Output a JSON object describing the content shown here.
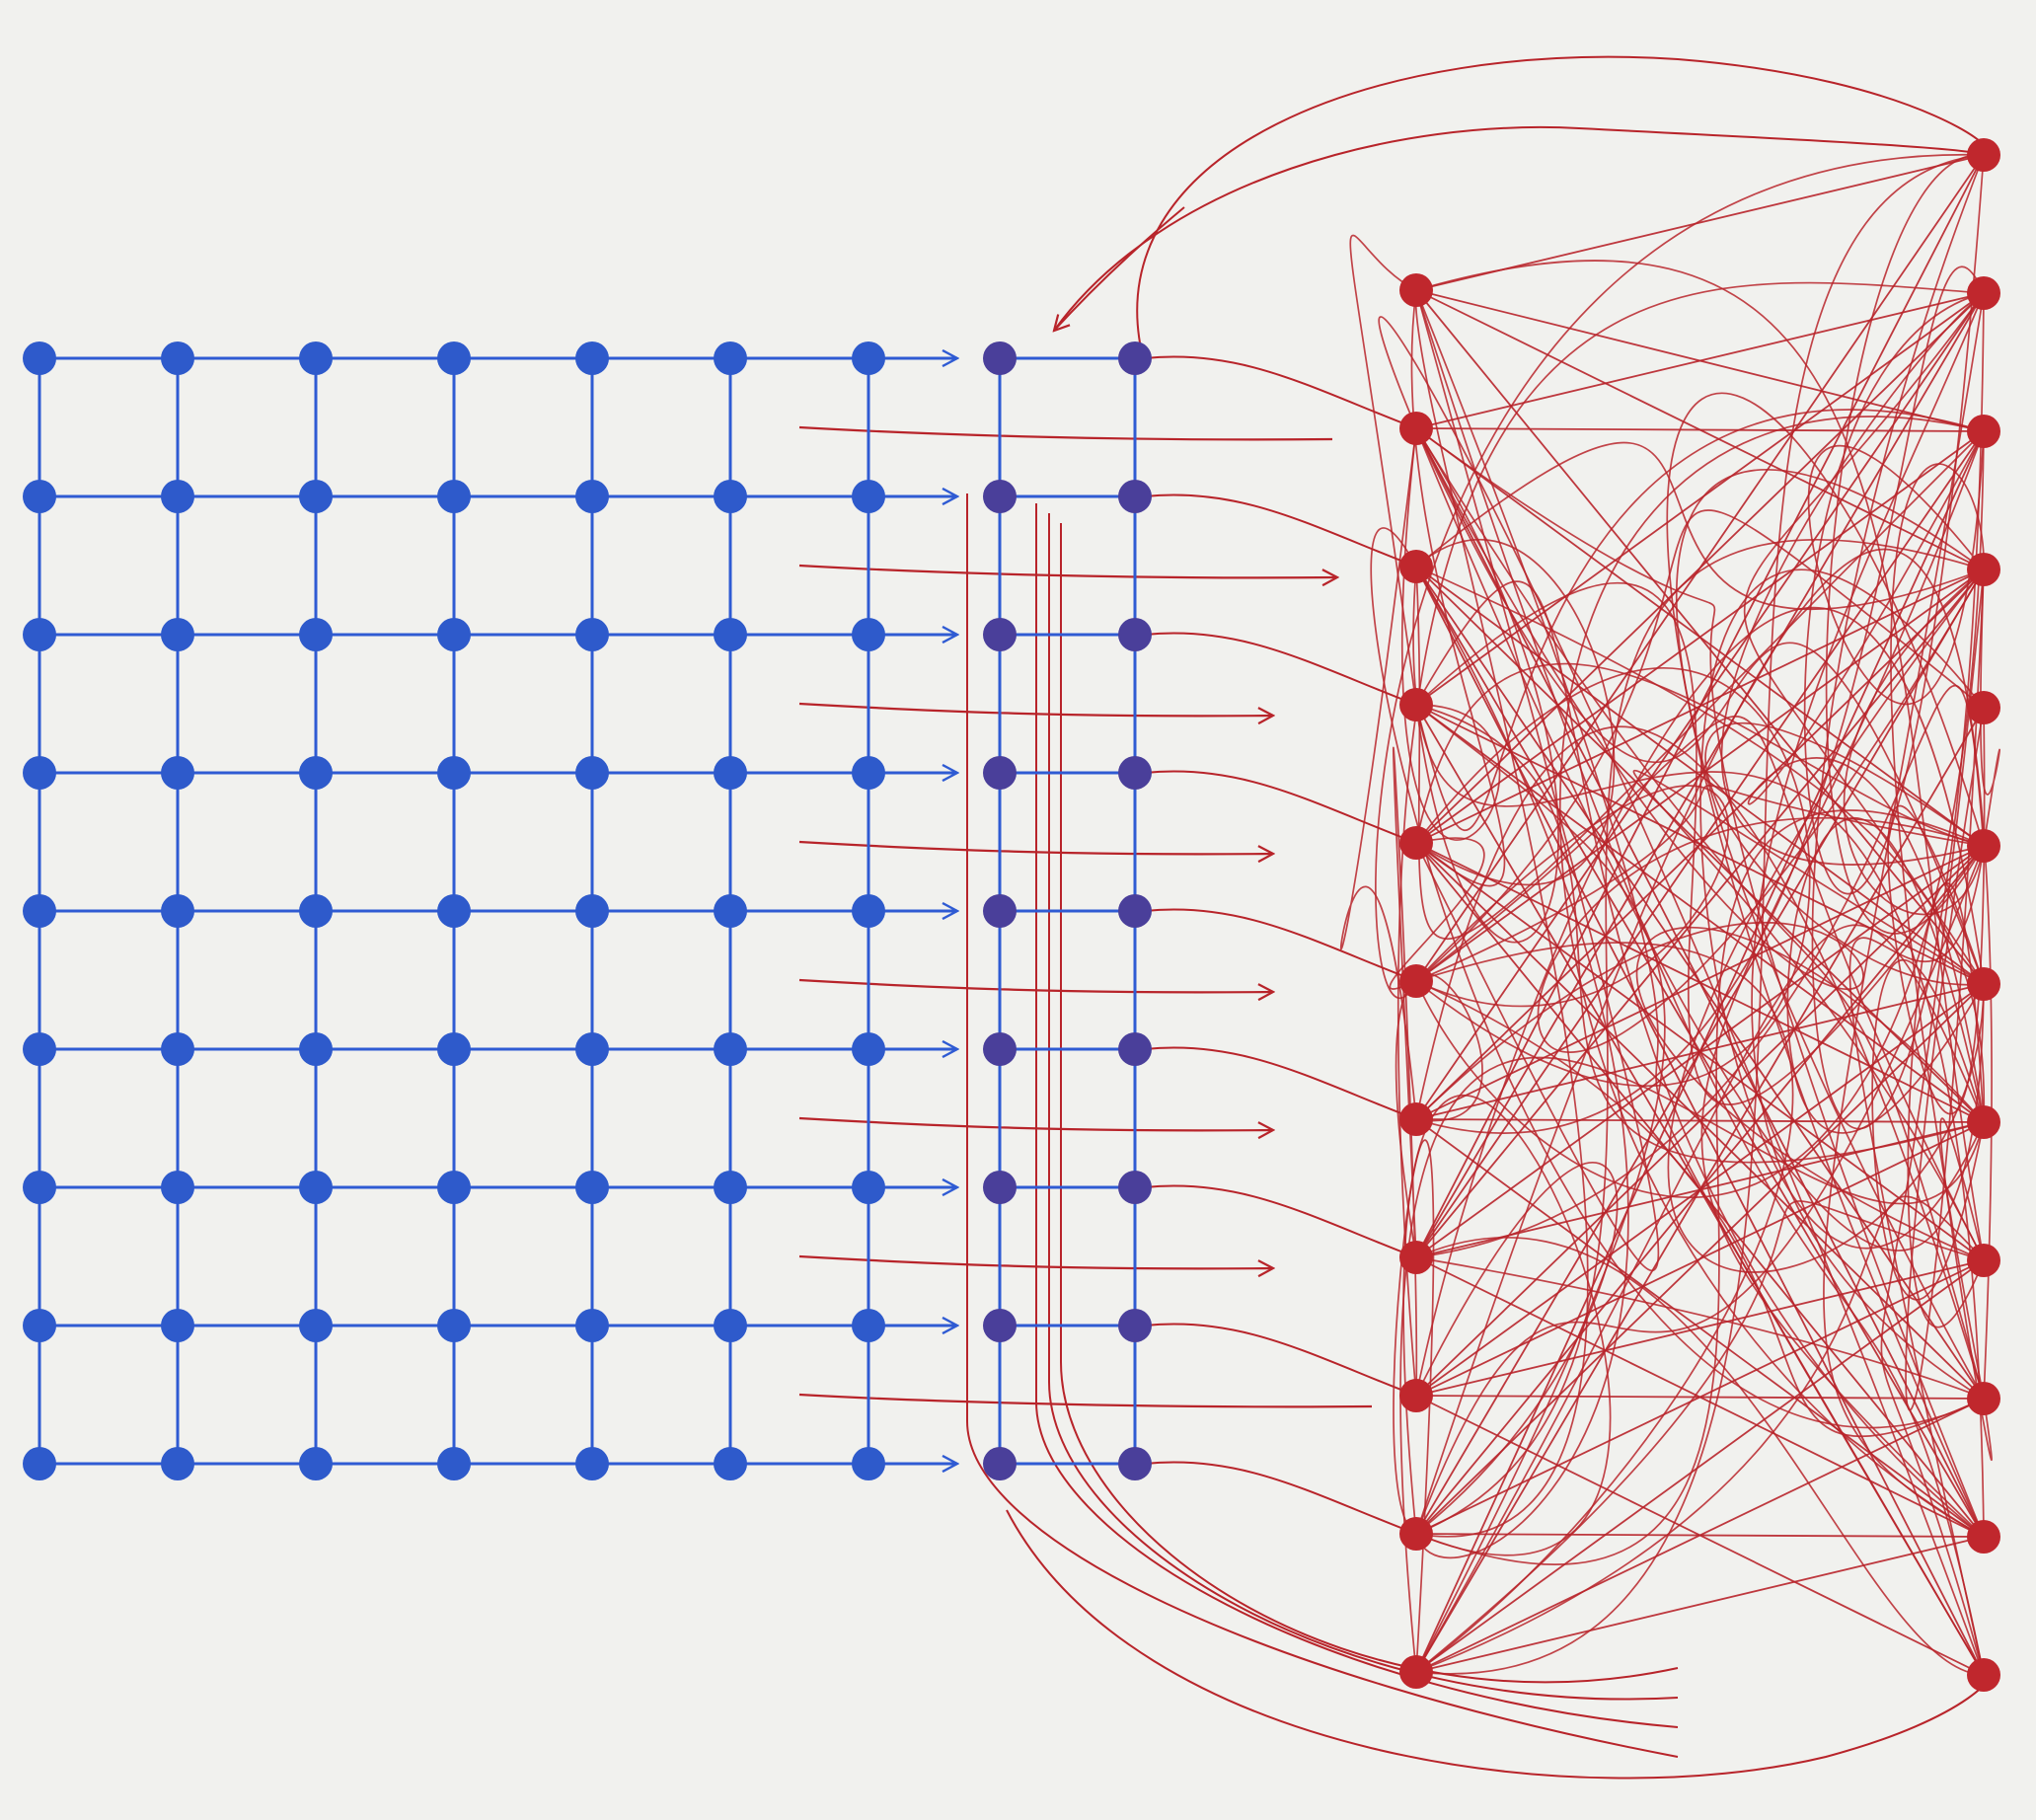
{
  "colors": {
    "background": "#f1f1ee",
    "grid_blue": "#2f5bd3",
    "grid_node_blue": "#2e5acb",
    "bridge_purple": "#4a3f9a",
    "tangle_red": "#b8242a",
    "tangle_node_red": "#c0272d"
  },
  "diagram": {
    "grid_rows": 9,
    "grid_cols": 7,
    "bridge_cols": 2,
    "red_left_nodes": 11,
    "red_right_nodes": 12
  }
}
